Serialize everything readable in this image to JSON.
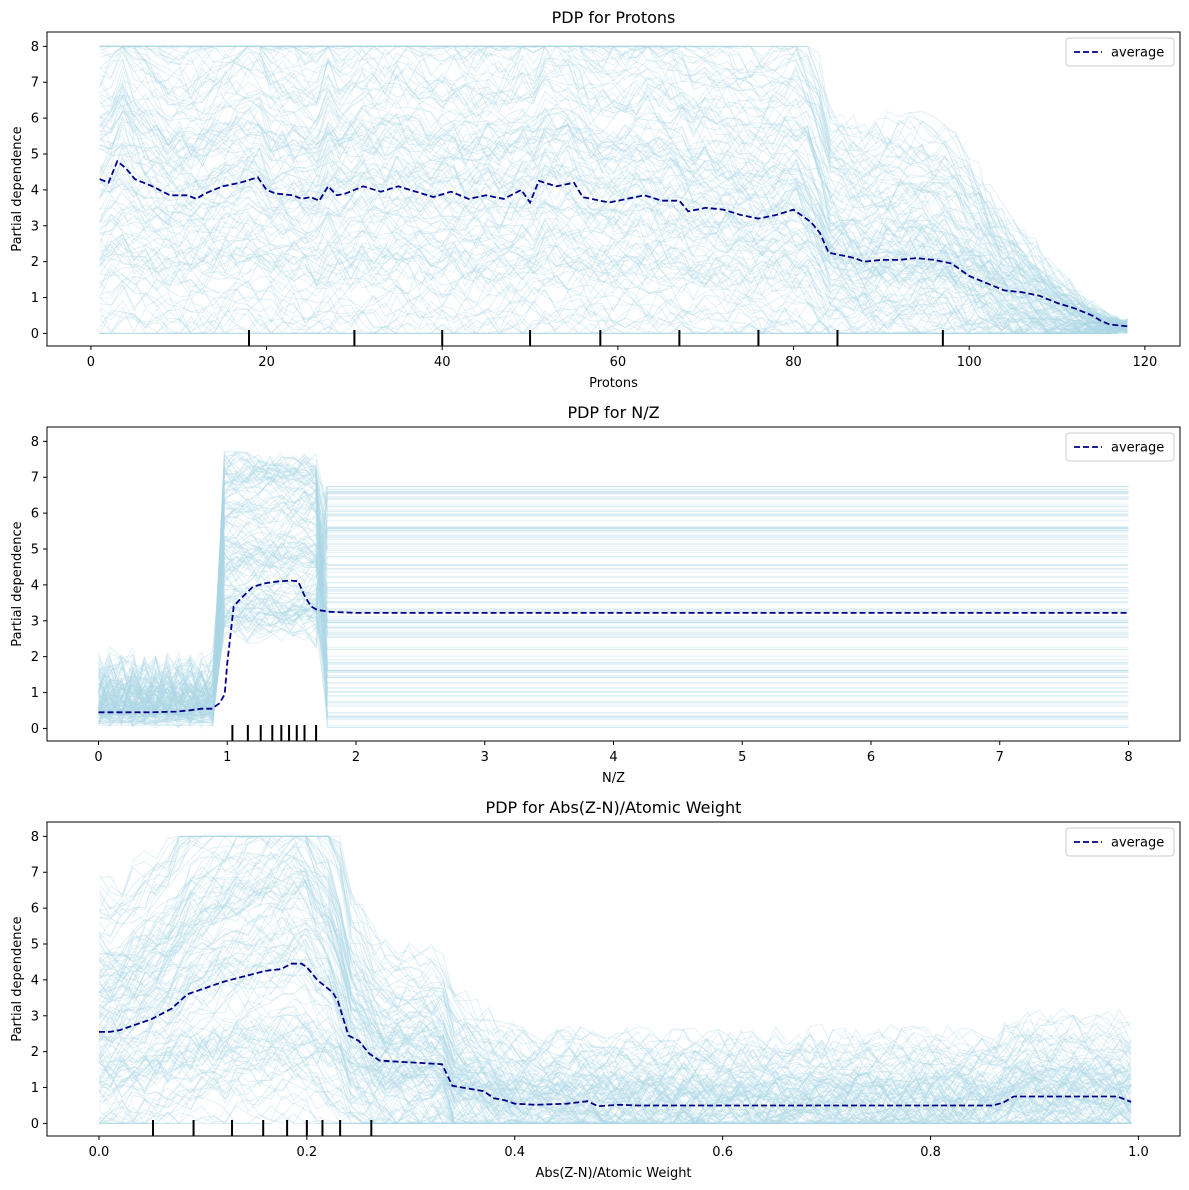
{
  "figure": {
    "panel_count": 3
  },
  "chart_data": [
    {
      "type": "line",
      "title": "PDP for Protons",
      "xlabel": "Protons",
      "ylabel": "Partial dependence",
      "xlim": [
        -5,
        124
      ],
      "ylim": [
        -0.35,
        8.4
      ],
      "xticks": [
        0,
        20,
        40,
        60,
        80,
        100,
        120
      ],
      "yticks": [
        0,
        1,
        2,
        3,
        4,
        5,
        6,
        7,
        8
      ],
      "grid": false,
      "legend": {
        "placement": "top-right",
        "entries": [
          "average"
        ]
      },
      "colors": {
        "ice": "#add8e6",
        "average": "#00008b"
      },
      "deciles": [
        18,
        30,
        40,
        50,
        58,
        67,
        76,
        85,
        97
      ],
      "ice_range_x": [
        1,
        118
      ],
      "series": [
        {
          "name": "average",
          "style": "dashed",
          "x": [
            1,
            2,
            3,
            4,
            5,
            7,
            9,
            11,
            12,
            13,
            15,
            17,
            19,
            20,
            21,
            23,
            24,
            25,
            26,
            27,
            28,
            29,
            30,
            31,
            33,
            35,
            37,
            39,
            41,
            43,
            45,
            47,
            49,
            50,
            51,
            53,
            55,
            56,
            57,
            59,
            61,
            63,
            65,
            67,
            68,
            70,
            72,
            74,
            76,
            78,
            80,
            82,
            83,
            84,
            86,
            87,
            88,
            90,
            92,
            94,
            96,
            98,
            100,
            102,
            104,
            106,
            108,
            110,
            112,
            114,
            115,
            116,
            118
          ],
          "y": [
            4.3,
            4.2,
            4.8,
            4.6,
            4.3,
            4.1,
            3.85,
            3.85,
            3.75,
            3.9,
            4.1,
            4.2,
            4.35,
            4.0,
            3.9,
            3.85,
            3.75,
            3.8,
            3.7,
            4.1,
            3.85,
            3.9,
            4.0,
            4.1,
            3.95,
            4.1,
            3.95,
            3.8,
            3.95,
            3.75,
            3.85,
            3.75,
            4.0,
            3.65,
            4.25,
            4.1,
            4.2,
            3.8,
            3.75,
            3.65,
            3.75,
            3.85,
            3.7,
            3.7,
            3.4,
            3.5,
            3.45,
            3.3,
            3.2,
            3.3,
            3.45,
            3.1,
            2.8,
            2.25,
            2.15,
            2.1,
            2.0,
            2.05,
            2.05,
            2.1,
            2.05,
            1.95,
            1.6,
            1.4,
            1.2,
            1.15,
            1.05,
            0.85,
            0.7,
            0.5,
            0.35,
            0.25,
            0.2
          ]
        }
      ]
    },
    {
      "type": "line",
      "title": "PDP for N/Z",
      "xlabel": "N/Z",
      "ylabel": "Partial dependence",
      "xlim": [
        -0.4,
        8.4
      ],
      "ylim": [
        -0.35,
        8.4
      ],
      "xticks": [
        0,
        1,
        2,
        3,
        4,
        5,
        6,
        7,
        8
      ],
      "yticks": [
        0,
        1,
        2,
        3,
        4,
        5,
        6,
        7,
        8
      ],
      "grid": false,
      "legend": {
        "placement": "top-right",
        "entries": [
          "average"
        ]
      },
      "colors": {
        "ice": "#add8e6",
        "average": "#00008b"
      },
      "deciles": [
        1.04,
        1.16,
        1.26,
        1.35,
        1.42,
        1.48,
        1.54,
        1.6,
        1.69
      ],
      "ice_range_x": [
        0,
        8
      ],
      "series": [
        {
          "name": "average",
          "style": "dashed",
          "x": [
            0,
            0.2,
            0.4,
            0.6,
            0.7,
            0.8,
            0.88,
            0.94,
            0.98,
            1.0,
            1.05,
            1.1,
            1.2,
            1.3,
            1.4,
            1.5,
            1.55,
            1.6,
            1.65,
            1.7,
            1.8,
            2.0,
            3.0,
            4.0,
            5.0,
            6.0,
            7.0,
            8.0
          ],
          "y": [
            0.45,
            0.45,
            0.45,
            0.47,
            0.5,
            0.55,
            0.55,
            0.7,
            0.95,
            1.8,
            3.4,
            3.6,
            3.95,
            4.05,
            4.1,
            4.12,
            4.1,
            3.7,
            3.4,
            3.3,
            3.25,
            3.22,
            3.22,
            3.22,
            3.22,
            3.22,
            3.22,
            3.22
          ]
        }
      ]
    },
    {
      "type": "line",
      "title": "PDP for Abs(Z-N)/Atomic Weight",
      "xlabel": "Abs(Z-N)/Atomic Weight",
      "ylabel": "Partial dependence",
      "xlim": [
        -0.05,
        1.04
      ],
      "ylim": [
        -0.35,
        8.4
      ],
      "xticks": [
        0.0,
        0.2,
        0.4,
        0.6,
        0.8,
        1.0
      ],
      "yticks": [
        0,
        1,
        2,
        3,
        4,
        5,
        6,
        7,
        8
      ],
      "grid": false,
      "legend": {
        "placement": "top-right",
        "entries": [
          "average"
        ]
      },
      "colors": {
        "ice": "#add8e6",
        "average": "#00008b"
      },
      "deciles": [
        0.052,
        0.091,
        0.128,
        0.158,
        0.181,
        0.2,
        0.215,
        0.232,
        0.262
      ],
      "ice_range_x": [
        0,
        0.993
      ],
      "series": [
        {
          "name": "average",
          "style": "dashed",
          "x": [
            0,
            0.01,
            0.02,
            0.03,
            0.05,
            0.07,
            0.085,
            0.1,
            0.12,
            0.14,
            0.16,
            0.175,
            0.185,
            0.195,
            0.2,
            0.21,
            0.225,
            0.23,
            0.24,
            0.25,
            0.26,
            0.27,
            0.3,
            0.33,
            0.34,
            0.35,
            0.37,
            0.38,
            0.39,
            0.4,
            0.42,
            0.45,
            0.47,
            0.48,
            0.5,
            0.52,
            0.6,
            0.7,
            0.8,
            0.86,
            0.87,
            0.88,
            0.9,
            0.95,
            0.98,
            0.993
          ],
          "y": [
            2.55,
            2.55,
            2.6,
            2.7,
            2.9,
            3.2,
            3.6,
            3.75,
            3.95,
            4.1,
            4.25,
            4.3,
            4.45,
            4.45,
            4.35,
            4.0,
            3.65,
            3.4,
            2.45,
            2.3,
            1.95,
            1.75,
            1.7,
            1.65,
            1.05,
            1.0,
            0.9,
            0.7,
            0.65,
            0.55,
            0.52,
            0.55,
            0.62,
            0.48,
            0.52,
            0.5,
            0.5,
            0.5,
            0.5,
            0.5,
            0.58,
            0.75,
            0.75,
            0.75,
            0.75,
            0.6
          ]
        }
      ]
    }
  ]
}
